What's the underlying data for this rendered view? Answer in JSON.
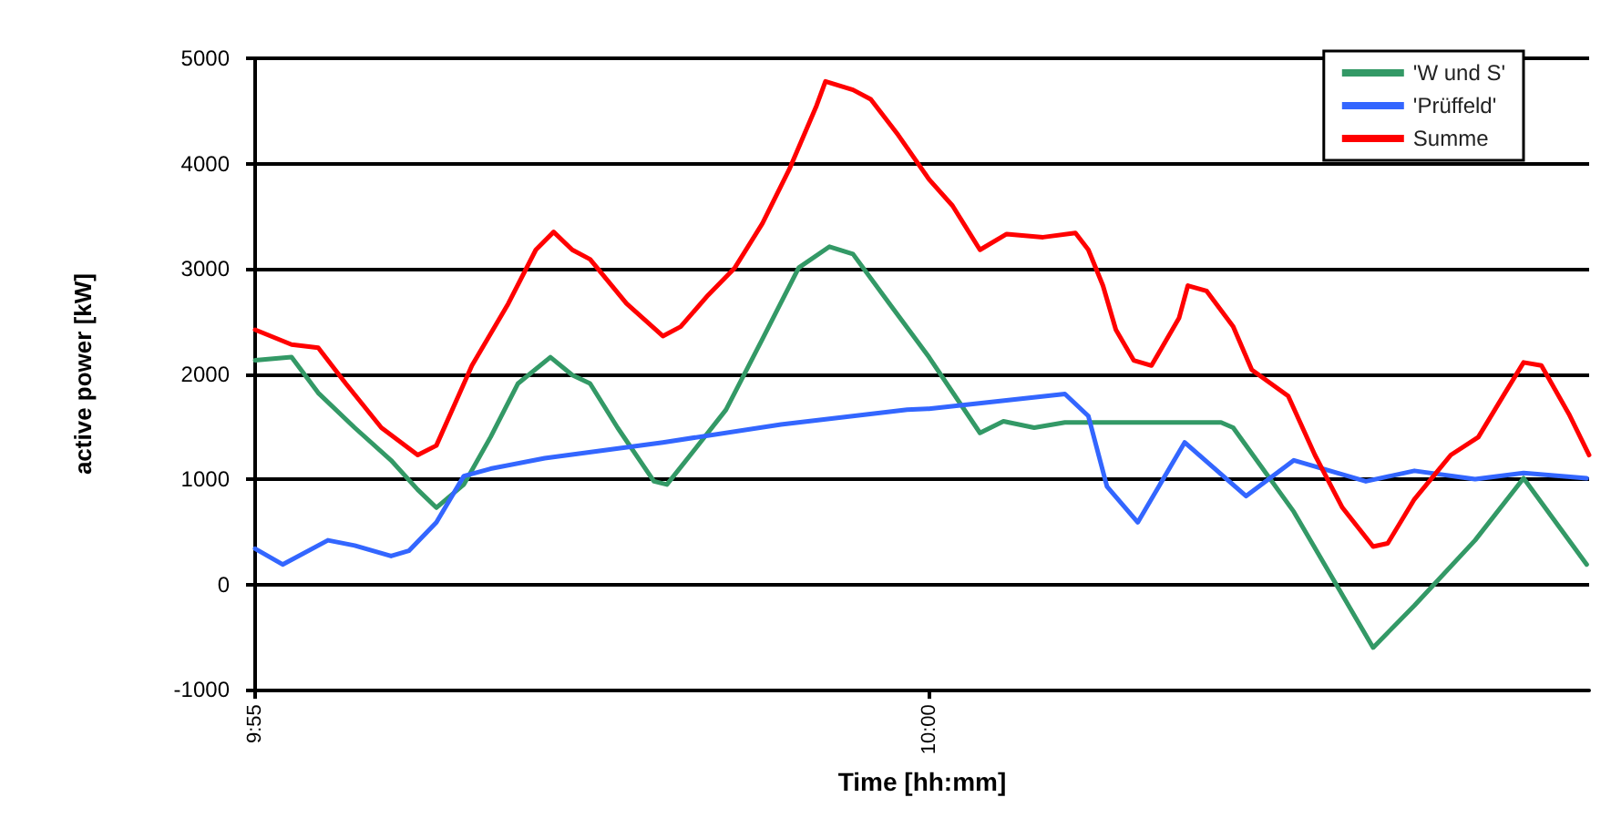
{
  "chart_data": {
    "type": "line",
    "xlabel": "Time [hh:mm]",
    "ylabel": "active power [kW]",
    "xlim": [
      9.9167,
      10.0816
    ],
    "xticks": [
      {
        "value": 9.9167,
        "label": "9:55"
      },
      {
        "value": 10,
        "label": "10:00"
      }
    ],
    "ylim": [
      -1000,
      5000
    ],
    "yticks": [
      -1000,
      0,
      1000,
      2000,
      3000,
      4000,
      5000
    ],
    "grid": "y",
    "legend": "top right",
    "marker": "none",
    "line_style": "solid",
    "series": [
      {
        "name": "'W und S'",
        "color": "#339966",
        "x": [
          9.9167,
          9.9212,
          9.9245,
          9.929,
          9.9335,
          9.9368,
          9.9391,
          9.9425,
          9.9458,
          9.9492,
          9.9532,
          9.9559,
          9.9581,
          9.9615,
          9.966,
          9.9676,
          9.9705,
          9.9749,
          9.9794,
          9.9839,
          9.9877,
          9.9906,
          9.9951,
          10.0,
          10.0063,
          10.0092,
          10.013,
          10.0168,
          10.0361,
          10.0376,
          10.0451,
          10.0549,
          10.06,
          10.0675,
          10.0735,
          10.0813
        ],
        "values": [
          2130,
          2160,
          1820,
          1490,
          1180,
          900,
          730,
          950,
          1400,
          1910,
          2160,
          1990,
          1910,
          1490,
          980,
          950,
          1230,
          1660,
          2330,
          3010,
          3210,
          3140,
          2670,
          2160,
          1440,
          1550,
          1490,
          1540,
          1540,
          1490,
          690,
          -600,
          -200,
          420,
          1010,
          190
        ]
      },
      {
        "name": "'Prüffeld'",
        "color": "#3366ff",
        "x": [
          9.9167,
          9.9201,
          9.9257,
          9.929,
          9.9335,
          9.9357,
          9.9391,
          9.9425,
          9.9458,
          9.9525,
          9.9671,
          9.9817,
          9.9973,
          10.0,
          10.0168,
          10.0197,
          10.022,
          10.0258,
          10.0316,
          10.0392,
          10.0451,
          10.054,
          10.06,
          10.0675,
          10.0735,
          10.0813
        ],
        "values": [
          340,
          190,
          420,
          370,
          270,
          320,
          590,
          1030,
          1100,
          1200,
          1350,
          1520,
          1660,
          1670,
          1810,
          1600,
          930,
          590,
          1350,
          840,
          1180,
          980,
          1080,
          1000,
          1060,
          1010
        ]
      },
      {
        "name": "Summe",
        "color": "#ff0000",
        "x": [
          9.9167,
          9.9212,
          9.9245,
          9.9279,
          9.9323,
          9.9368,
          9.9391,
          9.9435,
          9.948,
          9.9514,
          9.9536,
          9.9559,
          9.9581,
          9.9626,
          9.9671,
          9.9693,
          9.9727,
          9.976,
          9.9794,
          9.9827,
          9.9861,
          9.9872,
          9.9906,
          9.9928,
          9.9962,
          10.0,
          10.0029,
          10.0063,
          10.0096,
          10.0141,
          10.0181,
          10.0197,
          10.0215,
          10.0231,
          10.0253,
          10.0275,
          10.0309,
          10.032,
          10.0343,
          10.0376,
          10.0399,
          10.0444,
          10.0477,
          10.0511,
          10.0549,
          10.0567,
          10.06,
          10.0645,
          10.0679,
          10.0712,
          10.0735,
          10.0757,
          10.0791,
          10.0816
        ],
        "values": [
          2420,
          2280,
          2250,
          1910,
          1490,
          1230,
          1320,
          2080,
          2670,
          3180,
          3350,
          3180,
          3090,
          2670,
          2360,
          2450,
          2750,
          3010,
          3430,
          3940,
          4550,
          4780,
          4700,
          4610,
          4270,
          3850,
          3600,
          3180,
          3330,
          3300,
          3340,
          3180,
          2840,
          2420,
          2130,
          2080,
          2530,
          2840,
          2790,
          2450,
          2040,
          1790,
          1230,
          730,
          360,
          390,
          810,
          1230,
          1400,
          1820,
          2110,
          2080,
          1620,
          1230
        ]
      }
    ]
  }
}
